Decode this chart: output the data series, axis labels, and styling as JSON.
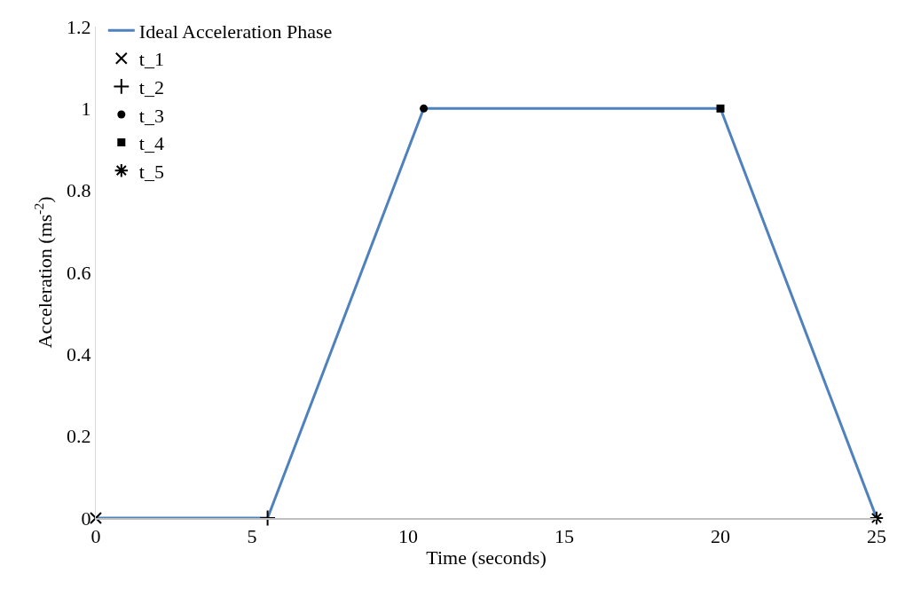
{
  "chart_data": {
    "type": "line",
    "xlabel": "Time (seconds)",
    "ylabel": "Acceleration (ms$^{-2}$)",
    "xlim": [
      0,
      25
    ],
    "xticks": [
      0,
      5,
      10,
      15,
      20,
      25
    ],
    "ylim": [
      0,
      1.2
    ],
    "yticks": [
      0,
      0.2,
      0.4,
      0.6,
      0.8,
      1,
      1.2
    ],
    "legend": "top left",
    "series": [
      {
        "name": "Ideal Acceleration Phase",
        "color": "#4f81bd",
        "marker": "none",
        "x": [
          0,
          5.5,
          10.5,
          20,
          25
        ],
        "values": [
          0,
          0,
          1,
          1,
          0
        ]
      },
      {
        "name": "t_1",
        "type": "scatter",
        "color": "#000000",
        "marker": "x",
        "x": [
          0
        ],
        "values": [
          0
        ]
      },
      {
        "name": "t_2",
        "type": "scatter",
        "color": "#000000",
        "marker": "plus",
        "x": [
          5.5
        ],
        "values": [
          0
        ]
      },
      {
        "name": "t_3",
        "type": "scatter",
        "color": "#000000",
        "marker": "circle",
        "x": [
          10.5
        ],
        "values": [
          1
        ]
      },
      {
        "name": "t_4",
        "type": "scatter",
        "color": "#000000",
        "marker": "square",
        "x": [
          20
        ],
        "values": [
          1
        ]
      },
      {
        "name": "t_5",
        "type": "scatter",
        "color": "#000000",
        "marker": "cross",
        "x": [
          25
        ],
        "values": [
          0
        ]
      }
    ]
  }
}
